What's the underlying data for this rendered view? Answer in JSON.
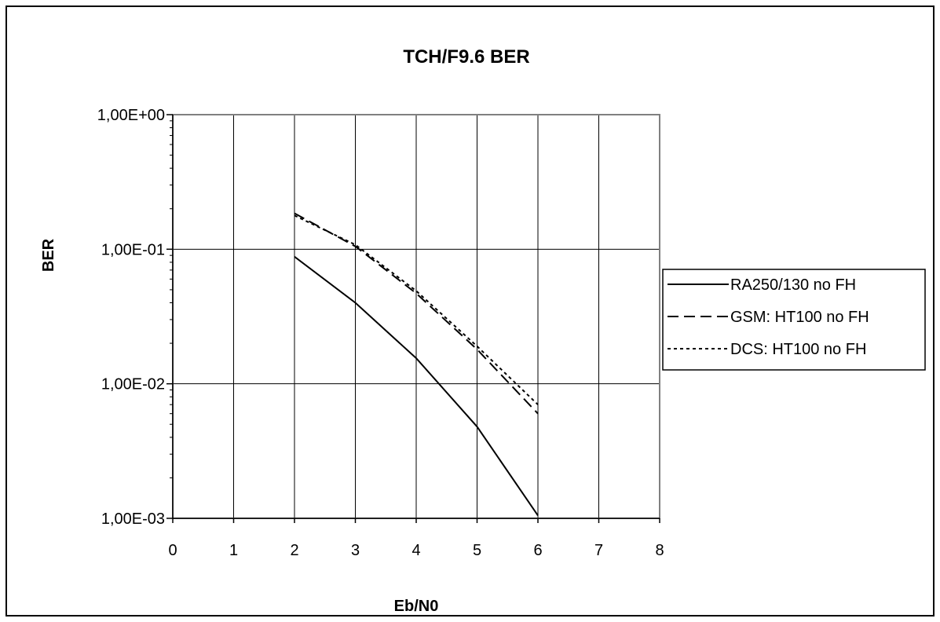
{
  "chart_data": {
    "type": "line",
    "title": "TCH/F9.6  BER",
    "xlabel": "Eb/N0",
    "ylabel": "BER",
    "xlim": [
      0,
      8
    ],
    "ylim": [
      0.001,
      1
    ],
    "yscale": "log",
    "x_ticks": [
      0,
      1,
      2,
      3,
      4,
      5,
      6,
      7,
      8
    ],
    "x_tick_labels": [
      "0",
      "1",
      "2",
      "3",
      "4",
      "5",
      "6",
      "7",
      "8"
    ],
    "y_ticks": [
      1,
      0.1,
      0.01,
      0.001
    ],
    "y_tick_labels": [
      "1,00E+00",
      "1,00E-01",
      "1,00E-02",
      "1,00E-03"
    ],
    "grid": true,
    "legend_position": "right",
    "series": [
      {
        "name": "RA250/130 no FH",
        "style": "solid",
        "x": [
          2,
          3,
          4,
          5,
          6
        ],
        "y": [
          0.088,
          0.04,
          0.0155,
          0.0048,
          0.00105
        ]
      },
      {
        "name": "GSM: HT100 no FH",
        "style": "dashed",
        "x": [
          2,
          3,
          4,
          5,
          6
        ],
        "y": [
          0.185,
          0.105,
          0.047,
          0.018,
          0.006
        ]
      },
      {
        "name": "DCS: HT100 no FH",
        "style": "dotted",
        "x": [
          2,
          3,
          4,
          5,
          6
        ],
        "y": [
          0.178,
          0.108,
          0.049,
          0.019,
          0.007
        ]
      }
    ]
  }
}
